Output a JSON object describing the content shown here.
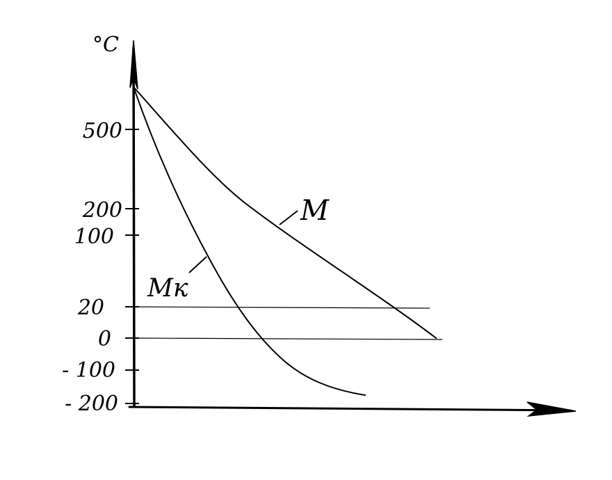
{
  "chart_data": {
    "type": "line",
    "title": "",
    "xlabel": "",
    "ylabel": "°C",
    "y_ticks": [
      "500",
      "200",
      "100",
      "20",
      "0",
      "- 100",
      "- 200"
    ],
    "series": [
      {
        "name": "M",
        "points": [
          [
            0,
            700
          ],
          [
            3.2,
            0
          ]
        ]
      },
      {
        "name": "Mк",
        "points": [
          [
            0,
            700
          ],
          [
            0.7,
            100
          ],
          [
            1.4,
            0
          ],
          [
            2.4,
            -200
          ]
        ]
      }
    ],
    "reference_lines": [
      20,
      0
    ],
    "grid": false,
    "legend": "none"
  }
}
